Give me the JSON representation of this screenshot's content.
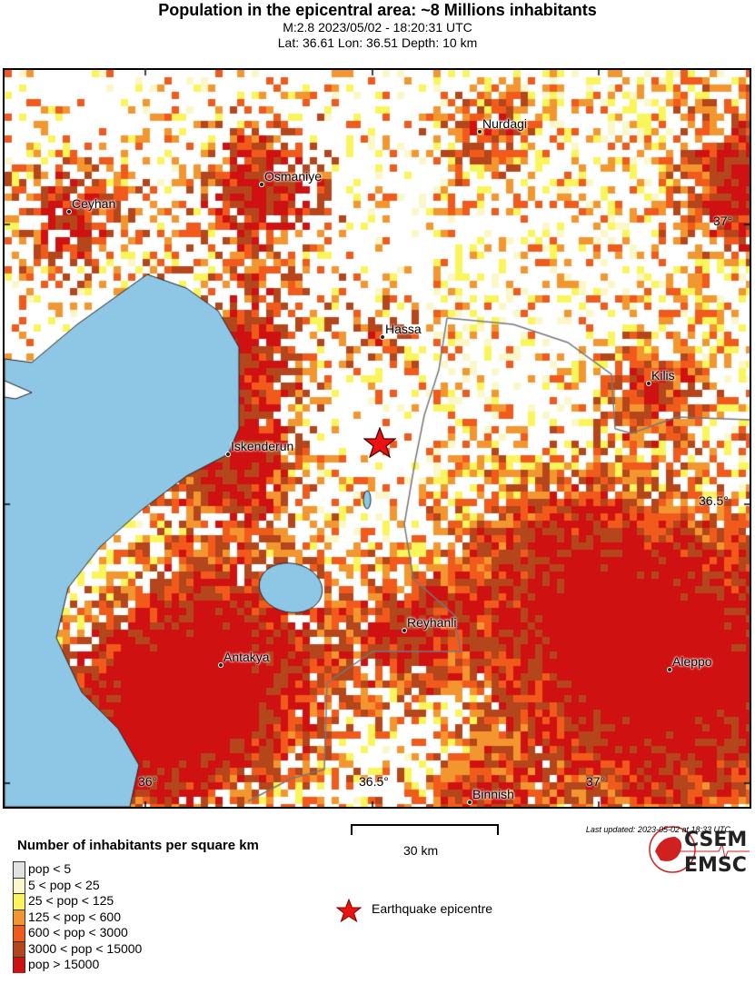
{
  "header": {
    "title": "Population in the epicentral area: ~8 Millions inhabitants",
    "line1": "M:2.8 2023/05/02 - 18:20:31 UTC",
    "line2": "Lat: 36.61 Lon: 36.51 Depth: 10 km"
  },
  "cities": [
    "Nurdagi",
    "Osmaniye",
    "Ceyhan",
    "Hassa",
    "Kilis",
    "Iskenderun",
    "Reyhanli",
    "Antakya",
    "Aleppo",
    "Binnish"
  ],
  "ticks": {
    "lat": [
      "37°",
      "36.5°"
    ],
    "lon": [
      "36°",
      "36.5°",
      "37°"
    ]
  },
  "legend": {
    "title": "Number of inhabitants per square km",
    "items": [
      {
        "label": "pop < 5",
        "color": "#e2e2e2"
      },
      {
        "label": "5 < pop < 25",
        "color": "#fbf7c9"
      },
      {
        "label": "25 < pop < 125",
        "color": "#fbf55c"
      },
      {
        "label": "125 < pop < 600",
        "color": "#f4962f"
      },
      {
        "label": "600 < pop < 3000",
        "color": "#f25a1c"
      },
      {
        "label": "3000 < pop < 15000",
        "color": "#b5461c"
      },
      {
        "label": "pop > 15000",
        "color": "#d01111"
      }
    ]
  },
  "scale_bar": "30 km",
  "epicentre_label": "Earthquake epicentre",
  "last_updated": "Last updated: 2023-05-02 at 18:33 UTC",
  "logo": {
    "top": "CSEM",
    "bottom": "EMSC"
  },
  "colors": {
    "sea": "#8ec7e5",
    "border": "#777777",
    "epicentre": "#ee1111"
  }
}
